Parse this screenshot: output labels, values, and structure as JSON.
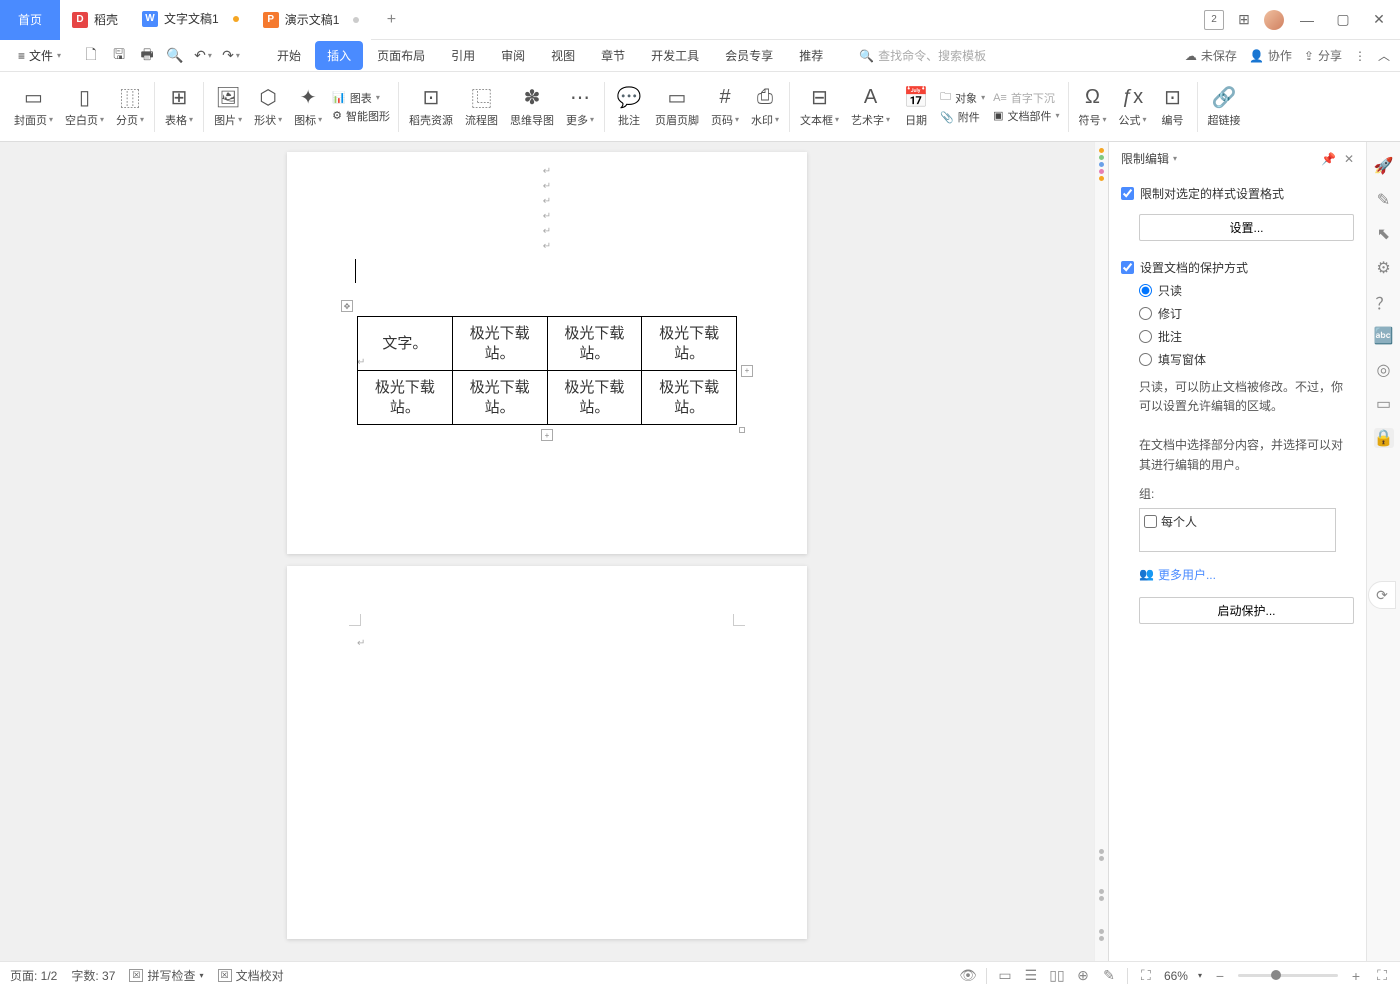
{
  "titlebar": {
    "home": "首页",
    "tab_docker": "稻壳",
    "tab_doc": "文字文稿1",
    "tab_pres": "演示文稿1"
  },
  "menubar": {
    "file": "文件",
    "tabs": [
      "开始",
      "插入",
      "页面布局",
      "引用",
      "审阅",
      "视图",
      "章节",
      "开发工具",
      "会员专享",
      "推荐"
    ],
    "active_index": 1,
    "search_placeholder": "查找命令、搜索模板",
    "unsaved": "未保存",
    "collab": "协作",
    "share": "分享"
  },
  "ribbon": {
    "items": [
      {
        "label": "封面页",
        "icon": "▭"
      },
      {
        "label": "空白页",
        "icon": "▯"
      },
      {
        "label": "分页",
        "icon": "⿲"
      },
      {
        "label": "表格",
        "icon": "⊞"
      },
      {
        "label": "图片",
        "icon": "🖼"
      },
      {
        "label": "形状",
        "icon": "◯"
      },
      {
        "label": "图标",
        "icon": "✦"
      }
    ],
    "chart": "图表",
    "smart": "智能图形",
    "docker_res": "稻壳资源",
    "flow": "流程图",
    "mind": "思维导图",
    "more": "更多",
    "comment": "批注",
    "header_footer": "页眉页脚",
    "page_num": "页码",
    "watermark": "水印",
    "textbox": "文本框",
    "wordart": "艺术字",
    "date": "日期",
    "object": "对象",
    "attach": "附件",
    "doc_parts": "文档部件",
    "dropcap": "首字下沉",
    "symbol": "符号",
    "formula": "公式",
    "number": "编号",
    "hyperlink": "超链接"
  },
  "table": {
    "rows": [
      [
        "文字。",
        "极光下载站。",
        "极光下载站。",
        "极光下载站。"
      ],
      [
        "极光下载站。",
        "极光下载站。",
        "极光下载站。",
        "极光下载站。"
      ]
    ]
  },
  "panel": {
    "title": "限制编辑",
    "chk_style": "限制对选定的样式设置格式",
    "btn_settings": "设置...",
    "chk_protect": "设置文档的保护方式",
    "radios": [
      "只读",
      "修订",
      "批注",
      "填写窗体"
    ],
    "radio_checked": 0,
    "note1": "只读，可以防止文档被修改。不过，你可以设置允许编辑的区域。",
    "note2": "在文档中选择部分内容，并选择可以对其进行编辑的用户。",
    "group_label": "组:",
    "everyone": "每个人",
    "more_users": "更多用户...",
    "start_protect": "启动保护..."
  },
  "statusbar": {
    "page": "页面: 1/2",
    "words": "字数: 37",
    "spell": "拼写检查",
    "proof": "文档校对",
    "zoom": "66%"
  }
}
